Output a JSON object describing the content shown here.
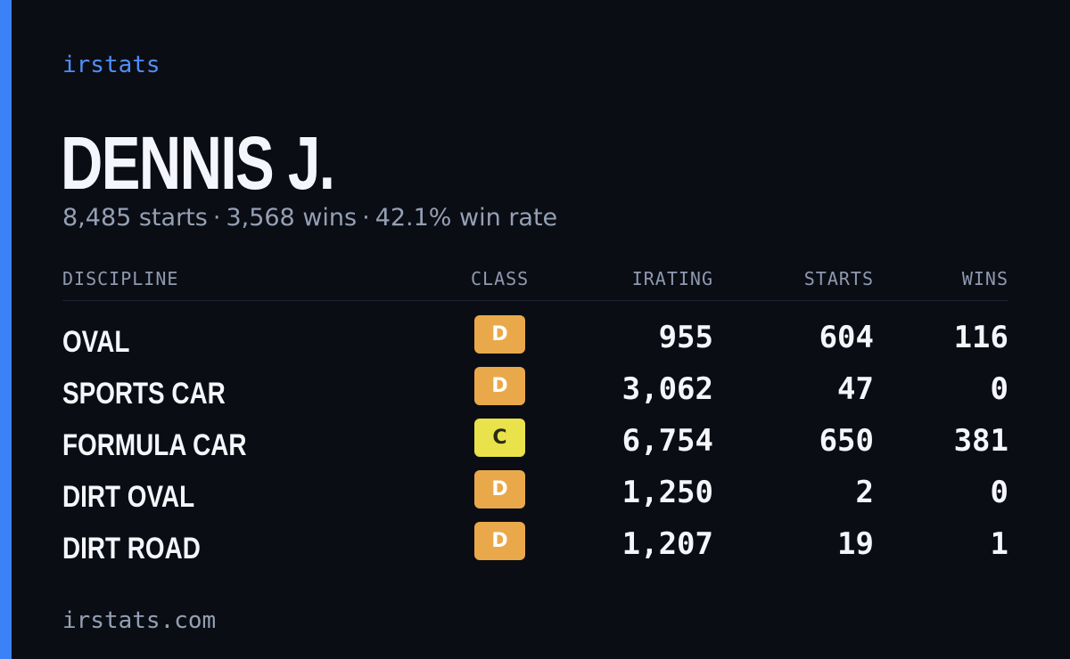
{
  "brand": "irstats",
  "player": {
    "name": "DENNIS J.",
    "starts_text": "8,485 starts",
    "wins_text": "3,568 wins",
    "win_rate_text": "42.1% win rate",
    "separator": "·"
  },
  "table": {
    "headers": {
      "discipline": "DISCIPLINE",
      "class": "CLASS",
      "irating": "IRATING",
      "starts": "STARTS",
      "wins": "WINS"
    },
    "rows": [
      {
        "discipline": "OVAL",
        "class": "D",
        "irating": "955",
        "starts": "604",
        "wins": "116"
      },
      {
        "discipline": "SPORTS CAR",
        "class": "D",
        "irating": "3,062",
        "starts": "47",
        "wins": "0"
      },
      {
        "discipline": "FORMULA CAR",
        "class": "C",
        "irating": "6,754",
        "starts": "650",
        "wins": "381"
      },
      {
        "discipline": "DIRT OVAL",
        "class": "D",
        "irating": "1,250",
        "starts": "2",
        "wins": "0"
      },
      {
        "discipline": "DIRT ROAD",
        "class": "D",
        "irating": "1,207",
        "starts": "19",
        "wins": "1"
      }
    ]
  },
  "class_colors": {
    "C": {
      "bg": "#e9e24a",
      "fg": "#2a2a14"
    },
    "D": {
      "bg": "#e9a94a",
      "fg": "#ffffff"
    }
  },
  "colors": {
    "background": "#0b0d14",
    "accent": "#3b82f6"
  },
  "footer": "irstats.com"
}
